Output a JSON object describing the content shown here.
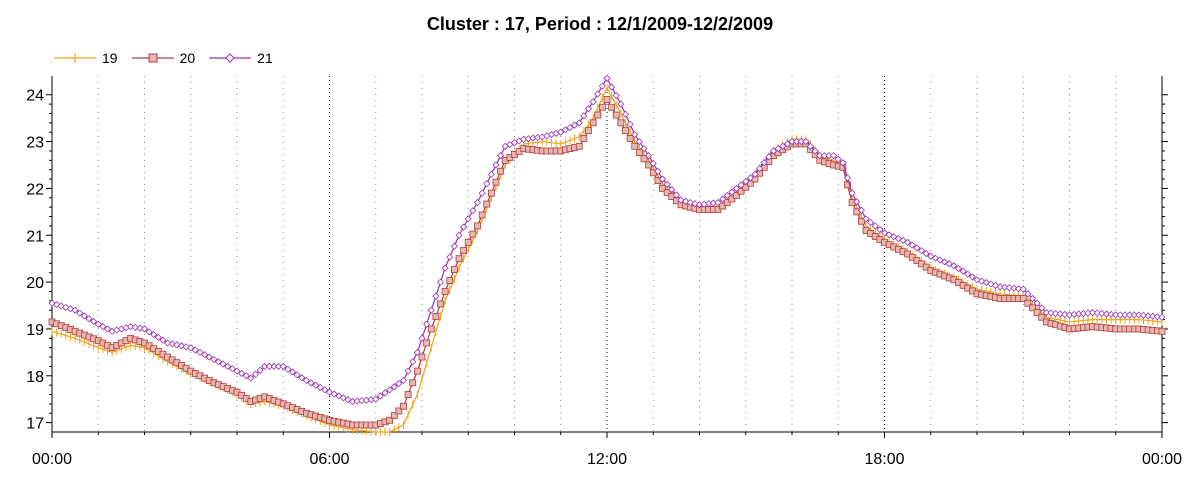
{
  "chart_data": {
    "type": "line",
    "title": "Cluster : 17, Period : 12/1/2009-12/2/2009",
    "xlabel": "",
    "ylabel": "",
    "x_ticks": [
      "00:00",
      "06:00",
      "12:00",
      "18:00",
      "00:00"
    ],
    "x_range_hours": [
      0,
      24
    ],
    "y_ticks": [
      17,
      18,
      19,
      20,
      21,
      22,
      23,
      24
    ],
    "ylim": [
      16.8,
      24.4
    ],
    "grid": "dotted vertical lines every 1h (strong every 6h)",
    "legend_position": "top-left",
    "series": [
      {
        "name": "19",
        "color": "#f2a31c",
        "marker": "plus",
        "points": [
          [
            0,
            18.95
          ],
          [
            0.5,
            18.8
          ],
          [
            1,
            18.6
          ],
          [
            1.3,
            18.5
          ],
          [
            1.7,
            18.65
          ],
          [
            2,
            18.6
          ],
          [
            2.5,
            18.3
          ],
          [
            3,
            18.05
          ],
          [
            3.5,
            17.85
          ],
          [
            4,
            17.6
          ],
          [
            4.3,
            17.4
          ],
          [
            4.6,
            17.45
          ],
          [
            5,
            17.35
          ],
          [
            5.5,
            17.15
          ],
          [
            6,
            16.95
          ],
          [
            6.5,
            16.85
          ],
          [
            7,
            16.8
          ],
          [
            7.3,
            16.8
          ],
          [
            7.6,
            16.95
          ],
          [
            7.9,
            17.6
          ],
          [
            8.2,
            18.6
          ],
          [
            8.5,
            19.6
          ],
          [
            8.8,
            20.3
          ],
          [
            9.2,
            21.1
          ],
          [
            9.5,
            21.8
          ],
          [
            9.8,
            22.5
          ],
          [
            10.2,
            22.95
          ],
          [
            10.6,
            23.0
          ],
          [
            11,
            22.95
          ],
          [
            11.4,
            23.1
          ],
          [
            11.7,
            23.5
          ],
          [
            12,
            24.15
          ],
          [
            12.3,
            23.6
          ],
          [
            12.6,
            23.0
          ],
          [
            12.9,
            22.6
          ],
          [
            13.2,
            22.1
          ],
          [
            13.6,
            21.75
          ],
          [
            14,
            21.6
          ],
          [
            14.4,
            21.6
          ],
          [
            14.8,
            21.9
          ],
          [
            15.2,
            22.3
          ],
          [
            15.6,
            22.8
          ],
          [
            16,
            23.05
          ],
          [
            16.3,
            23.05
          ],
          [
            16.6,
            22.7
          ],
          [
            16.9,
            22.6
          ],
          [
            17.1,
            22.5
          ],
          [
            17.3,
            21.8
          ],
          [
            17.6,
            21.2
          ],
          [
            18,
            20.9
          ],
          [
            18.5,
            20.65
          ],
          [
            19,
            20.3
          ],
          [
            19.5,
            20.1
          ],
          [
            20,
            19.85
          ],
          [
            20.5,
            19.75
          ],
          [
            21,
            19.7
          ],
          [
            21.5,
            19.25
          ],
          [
            22,
            19.15
          ],
          [
            22.5,
            19.2
          ],
          [
            23,
            19.2
          ],
          [
            23.5,
            19.2
          ],
          [
            24,
            19.15
          ]
        ]
      },
      {
        "name": "20",
        "color": "#b03c3c",
        "marker": "square",
        "points": [
          [
            0,
            19.15
          ],
          [
            0.5,
            18.95
          ],
          [
            1,
            18.75
          ],
          [
            1.3,
            18.6
          ],
          [
            1.7,
            18.8
          ],
          [
            2,
            18.7
          ],
          [
            2.5,
            18.4
          ],
          [
            3,
            18.1
          ],
          [
            3.5,
            17.85
          ],
          [
            4,
            17.65
          ],
          [
            4.3,
            17.45
          ],
          [
            4.6,
            17.55
          ],
          [
            5,
            17.4
          ],
          [
            5.5,
            17.2
          ],
          [
            6,
            17.05
          ],
          [
            6.5,
            16.95
          ],
          [
            7,
            16.95
          ],
          [
            7.3,
            17.05
          ],
          [
            7.6,
            17.35
          ],
          [
            7.9,
            18.1
          ],
          [
            8.2,
            19.0
          ],
          [
            8.5,
            19.8
          ],
          [
            8.8,
            20.5
          ],
          [
            9.2,
            21.2
          ],
          [
            9.5,
            21.9
          ],
          [
            9.8,
            22.6
          ],
          [
            10.2,
            22.85
          ],
          [
            10.6,
            22.8
          ],
          [
            11,
            22.8
          ],
          [
            11.4,
            22.9
          ],
          [
            11.7,
            23.4
          ],
          [
            12,
            23.9
          ],
          [
            12.3,
            23.4
          ],
          [
            12.6,
            22.9
          ],
          [
            12.9,
            22.5
          ],
          [
            13.2,
            22.0
          ],
          [
            13.6,
            21.65
          ],
          [
            14,
            21.55
          ],
          [
            14.4,
            21.55
          ],
          [
            14.8,
            21.85
          ],
          [
            15.2,
            22.2
          ],
          [
            15.6,
            22.7
          ],
          [
            16,
            22.95
          ],
          [
            16.3,
            22.95
          ],
          [
            16.6,
            22.6
          ],
          [
            16.9,
            22.5
          ],
          [
            17.1,
            22.45
          ],
          [
            17.3,
            21.7
          ],
          [
            17.6,
            21.1
          ],
          [
            18,
            20.85
          ],
          [
            18.5,
            20.6
          ],
          [
            19,
            20.25
          ],
          [
            19.5,
            20.05
          ],
          [
            20,
            19.75
          ],
          [
            20.5,
            19.65
          ],
          [
            21,
            19.65
          ],
          [
            21.5,
            19.15
          ],
          [
            22,
            19.0
          ],
          [
            22.5,
            19.05
          ],
          [
            23,
            19.0
          ],
          [
            23.5,
            19.0
          ],
          [
            24,
            18.95
          ]
        ]
      },
      {
        "name": "21",
        "color": "#9a31b5",
        "marker": "diamond",
        "points": [
          [
            0,
            19.55
          ],
          [
            0.5,
            19.4
          ],
          [
            1,
            19.1
          ],
          [
            1.3,
            18.95
          ],
          [
            1.7,
            19.05
          ],
          [
            2,
            19.0
          ],
          [
            2.5,
            18.7
          ],
          [
            3,
            18.6
          ],
          [
            3.5,
            18.35
          ],
          [
            4,
            18.1
          ],
          [
            4.3,
            17.95
          ],
          [
            4.6,
            18.2
          ],
          [
            5,
            18.2
          ],
          [
            5.5,
            17.9
          ],
          [
            6,
            17.65
          ],
          [
            6.5,
            17.45
          ],
          [
            7,
            17.5
          ],
          [
            7.3,
            17.7
          ],
          [
            7.6,
            17.9
          ],
          [
            7.9,
            18.5
          ],
          [
            8.2,
            19.4
          ],
          [
            8.5,
            20.3
          ],
          [
            8.8,
            21.0
          ],
          [
            9.2,
            21.7
          ],
          [
            9.5,
            22.3
          ],
          [
            9.8,
            22.9
          ],
          [
            10.2,
            23.05
          ],
          [
            10.6,
            23.1
          ],
          [
            11,
            23.2
          ],
          [
            11.4,
            23.4
          ],
          [
            11.7,
            23.85
          ],
          [
            12,
            24.35
          ],
          [
            12.3,
            23.8
          ],
          [
            12.6,
            23.15
          ],
          [
            12.9,
            22.7
          ],
          [
            13.2,
            22.2
          ],
          [
            13.6,
            21.75
          ],
          [
            14,
            21.65
          ],
          [
            14.4,
            21.7
          ],
          [
            14.8,
            22.0
          ],
          [
            15.2,
            22.3
          ],
          [
            15.6,
            22.8
          ],
          [
            16,
            23.0
          ],
          [
            16.3,
            23.0
          ],
          [
            16.6,
            22.7
          ],
          [
            16.9,
            22.7
          ],
          [
            17.1,
            22.55
          ],
          [
            17.3,
            21.9
          ],
          [
            17.6,
            21.35
          ],
          [
            18,
            21.05
          ],
          [
            18.5,
            20.85
          ],
          [
            19,
            20.55
          ],
          [
            19.5,
            20.35
          ],
          [
            20,
            20.05
          ],
          [
            20.5,
            19.9
          ],
          [
            21,
            19.85
          ],
          [
            21.5,
            19.35
          ],
          [
            22,
            19.3
          ],
          [
            22.5,
            19.35
          ],
          [
            23,
            19.3
          ],
          [
            23.5,
            19.3
          ],
          [
            24,
            19.25
          ]
        ]
      }
    ]
  }
}
